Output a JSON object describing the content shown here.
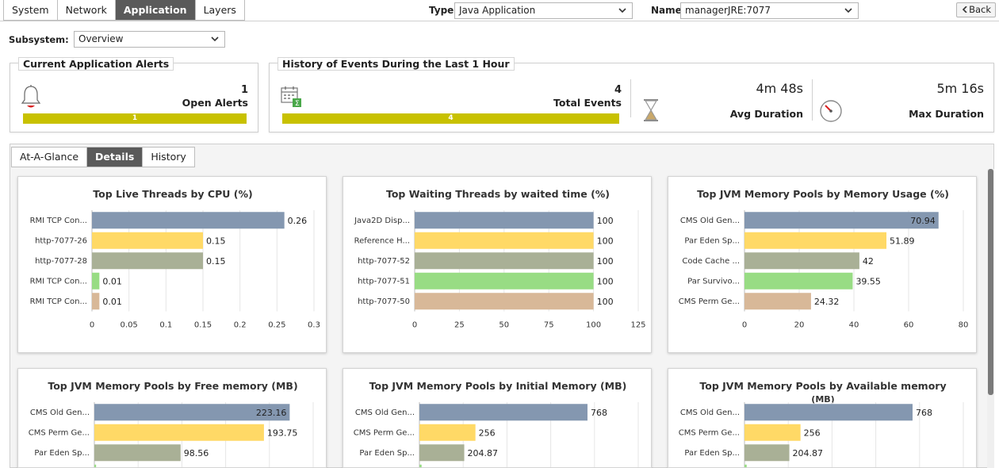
{
  "top_tabs": [
    "System",
    "Network",
    "Application",
    "Layers"
  ],
  "active_top_tab": "Application",
  "type_select": {
    "label": "Type",
    "value": "Java Application"
  },
  "name_select": {
    "label": "Name",
    "value": "managerJRE:7077"
  },
  "back_label": "Back",
  "subsystem": {
    "label": "Subsystem:",
    "value": "Overview"
  },
  "alerts_panel": {
    "title": "Current Application Alerts",
    "count": "1",
    "label": "Open Alerts",
    "bar_value": "1"
  },
  "history_panel": {
    "title": "History of Events During the Last 1 Hour",
    "count": "4",
    "label": "Total Events",
    "bar_value": "4",
    "avg_duration": "4m 48s",
    "avg_label": "Avg Duration",
    "max_duration": "5m 16s",
    "max_label": "Max Duration"
  },
  "detail_tabs": [
    "At-A-Glance",
    "Details",
    "History"
  ],
  "active_detail_tab": "Details",
  "colors": {
    "series": [
      "#8497b0",
      "#ffd966",
      "#a9b096",
      "#98dc84",
      "#d8b898"
    ],
    "progress": "#c8c100",
    "tab_active": "#5a5a5a"
  },
  "chart_data": [
    {
      "type": "bar",
      "title": "Top Live Threads by CPU (%)",
      "categories": [
        "RMI TCP Con...",
        "http-7077-26",
        "http-7077-28",
        "RMI TCP Con...",
        "RMI TCP Con..."
      ],
      "values": [
        0.26,
        0.15,
        0.15,
        0.01,
        0.01
      ],
      "value_labels": [
        "0.26",
        "0.15",
        "0.15",
        "0.01",
        "0.01"
      ],
      "xlim": [
        0,
        0.3
      ],
      "ticks": [
        0,
        0.05,
        0.1,
        0.15,
        0.2,
        0.25,
        0.3
      ],
      "tick_labels": [
        "0",
        "0.05",
        "0.1",
        "0.15",
        "0.2",
        "0.25",
        "0.3"
      ],
      "label_inside": [
        false,
        false,
        false,
        false,
        false
      ]
    },
    {
      "type": "bar",
      "title": "Top Waiting Threads by waited time (%)",
      "categories": [
        "Java2D Disp...",
        "Reference H...",
        "http-7077-52",
        "http-7077-51",
        "http-7077-50"
      ],
      "values": [
        100,
        100,
        100,
        100,
        100
      ],
      "value_labels": [
        "100",
        "100",
        "100",
        "100",
        "100"
      ],
      "xlim": [
        0,
        125
      ],
      "ticks": [
        0,
        25,
        50,
        75,
        100,
        125
      ],
      "tick_labels": [
        "0",
        "25",
        "50",
        "75",
        "100",
        "125"
      ],
      "label_inside": [
        false,
        false,
        false,
        false,
        false
      ]
    },
    {
      "type": "bar",
      "title": "Top JVM Memory Pools by Memory Usage (%)",
      "categories": [
        "CMS Old Gen...",
        "Par Eden Sp...",
        "Code Cache ...",
        "Par Survivo...",
        "CMS Perm Ge..."
      ],
      "values": [
        70.94,
        51.89,
        42,
        39.55,
        24.32
      ],
      "value_labels": [
        "70.94",
        "51.89",
        "42",
        "39.55",
        "24.32"
      ],
      "xlim": [
        0,
        80
      ],
      "ticks": [
        0,
        20,
        40,
        60,
        80
      ],
      "tick_labels": [
        "0",
        "20",
        "40",
        "60",
        "80"
      ],
      "label_inside": [
        true,
        false,
        false,
        false,
        false
      ]
    },
    {
      "type": "bar",
      "title": "Top JVM Memory Pools by Free memory (MB)",
      "categories": [
        "CMS Old Gen...",
        "CMS Perm Ge...",
        "Par Eden Sp...",
        ""
      ],
      "values": [
        223.16,
        193.75,
        98.56,
        2
      ],
      "value_labels": [
        "223.16",
        "193.75",
        "98.56",
        ""
      ],
      "xlim": [
        0,
        250
      ],
      "label_inside": [
        true,
        false,
        false,
        false
      ]
    },
    {
      "type": "bar",
      "title": "Top JVM Memory Pools by Initial Memory (MB)",
      "categories": [
        "CMS Old Gen...",
        "CMS Perm Ge...",
        "Par Eden Sp...",
        ""
      ],
      "values": [
        768,
        256,
        204.87,
        10
      ],
      "value_labels": [
        "768",
        "256",
        "204.87",
        ""
      ],
      "xlim": [
        0,
        1000
      ],
      "label_inside": [
        false,
        false,
        false,
        false
      ]
    },
    {
      "type": "bar",
      "title": "Top JVM Memory Pools by Available memory",
      "subtitle": "(MB)",
      "categories": [
        "CMS Old Gen...",
        "CMS Perm Ge...",
        "Par Eden Sp...",
        ""
      ],
      "values": [
        768,
        256,
        204.87,
        10
      ],
      "value_labels": [
        "768",
        "256",
        "204.87",
        ""
      ],
      "xlim": [
        0,
        1000
      ],
      "label_inside": [
        false,
        false,
        false,
        false
      ]
    }
  ]
}
